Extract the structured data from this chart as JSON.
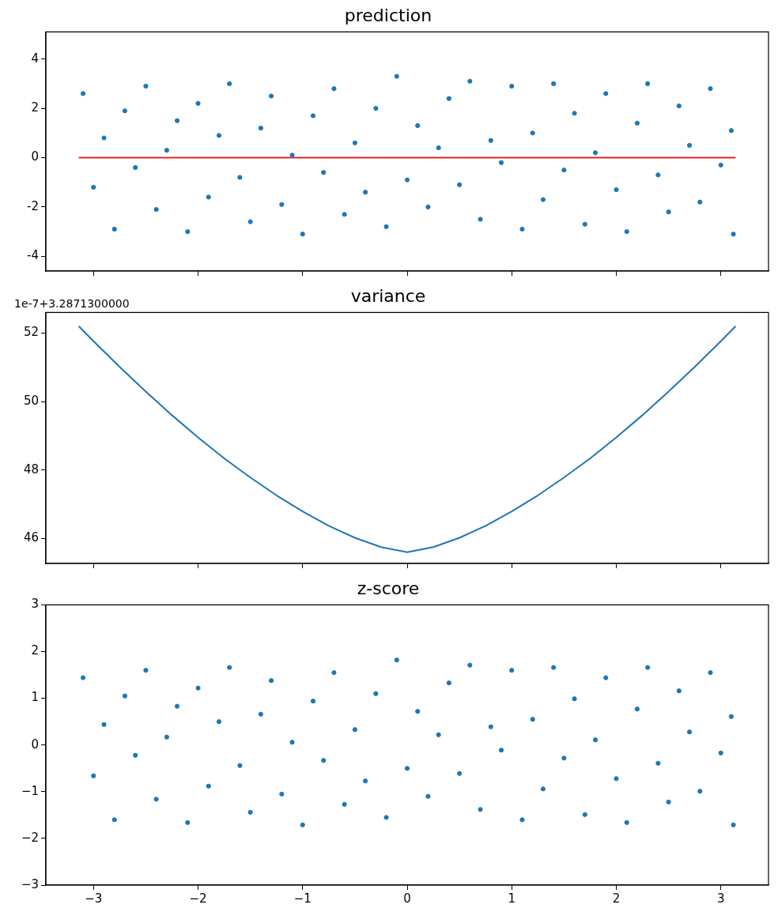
{
  "chart_data": [
    {
      "type": "scatter",
      "title": "prediction",
      "tick_labels": "y",
      "xlim": [
        -3.456,
        3.456
      ],
      "xticks": [
        -3,
        -2,
        -1,
        0,
        1,
        2,
        3
      ],
      "ylim": [
        -4.6,
        5.1
      ],
      "yticks": [
        -4,
        -2,
        0,
        2,
        4
      ],
      "series": [
        {
          "type": "scatter",
          "marker": "circle",
          "color": "#1f77b4",
          "x": [
            -3.1,
            -3.0,
            -2.9,
            -2.8,
            -2.7,
            -2.6,
            -2.5,
            -2.4,
            -2.3,
            -2.2,
            -2.1,
            -2.0,
            -1.9,
            -1.8,
            -1.7,
            -1.6,
            -1.5,
            -1.4,
            -1.3,
            -1.2,
            -1.1,
            -1.0,
            -0.9,
            -0.8,
            -0.7,
            -0.6,
            -0.5,
            -0.4,
            -0.3,
            -0.2,
            -0.1,
            0.0,
            0.1,
            0.2,
            0.3,
            0.4,
            0.5,
            0.6,
            0.7,
            0.8,
            0.9,
            1.0,
            1.1,
            1.2,
            1.3,
            1.4,
            1.5,
            1.6,
            1.7,
            1.8,
            1.9,
            2.0,
            2.1,
            2.2,
            2.3,
            2.4,
            2.5,
            2.6,
            2.7,
            2.8,
            2.9,
            3.0,
            3.1,
            3.12
          ],
          "values": [
            2.6,
            -1.2,
            0.8,
            -2.9,
            1.9,
            -0.4,
            2.9,
            -2.1,
            0.3,
            1.5,
            -3.0,
            2.2,
            -1.6,
            0.9,
            3.0,
            -0.8,
            -2.6,
            1.2,
            2.5,
            -1.9,
            0.1,
            -3.1,
            1.7,
            -0.6,
            2.8,
            -2.3,
            0.6,
            -1.4,
            2.0,
            -2.8,
            3.3,
            -0.9,
            1.3,
            -2.0,
            0.4,
            2.4,
            -1.1,
            3.1,
            -2.5,
            0.7,
            -0.2,
            2.9,
            -2.9,
            1.0,
            -1.7,
            3.0,
            -0.5,
            1.8,
            -2.7,
            0.2,
            2.6,
            -1.3,
            -3.0,
            1.4,
            3.0,
            -0.7,
            -2.2,
            2.1,
            0.5,
            -1.8,
            2.8,
            -0.3,
            1.1,
            -3.1
          ]
        },
        {
          "type": "line",
          "marker": "none",
          "color": "#e3262b",
          "x": [
            -3.1416,
            3.1416
          ],
          "values": [
            0,
            0
          ]
        }
      ]
    },
    {
      "type": "line",
      "title": "variance",
      "annotations": [
        "1e-7+3.2871300000"
      ],
      "marker": "none",
      "tick_labels": "y",
      "xlim": [
        -3.456,
        3.456
      ],
      "xticks": [
        -3,
        -2,
        -1,
        0,
        1,
        2,
        3
      ],
      "ylim": [
        45.27,
        52.6
      ],
      "yticks": [
        46,
        48,
        50,
        52
      ],
      "series": [
        {
          "color": "#1f77b4",
          "x": [
            -3.1416,
            -3.0,
            -2.75,
            -2.5,
            -2.25,
            -2.0,
            -1.75,
            -1.5,
            -1.25,
            -1.0,
            -0.75,
            -0.5,
            -0.25,
            0,
            0.25,
            0.5,
            0.75,
            1.0,
            1.25,
            1.5,
            1.75,
            2.0,
            2.25,
            2.5,
            2.75,
            3.0,
            3.1416
          ],
          "values": [
            52.2,
            51.76,
            51.01,
            50.29,
            49.6,
            48.95,
            48.34,
            47.78,
            47.26,
            46.79,
            46.37,
            46.02,
            45.75,
            45.6,
            45.75,
            46.02,
            46.37,
            46.79,
            47.26,
            47.78,
            48.34,
            48.95,
            49.6,
            50.29,
            51.01,
            51.76,
            52.2
          ]
        }
      ]
    },
    {
      "type": "scatter",
      "title": "z-score",
      "marker": "circle",
      "xlim": [
        -3.456,
        3.456
      ],
      "xticks": [
        {
          "value": -3,
          "label": "−3"
        },
        {
          "value": -2,
          "label": "−2"
        },
        {
          "value": -1,
          "label": "−1"
        },
        0,
        1,
        2,
        3
      ],
      "ylim": [
        -3,
        3
      ],
      "yticks": [
        {
          "value": -3,
          "label": "−3"
        },
        {
          "value": -2,
          "label": "−2"
        },
        {
          "value": -1,
          "label": "−1"
        },
        0,
        1,
        2,
        3
      ],
      "series": [
        {
          "color": "#1f77b4",
          "x": [
            -3.1,
            -3.0,
            -2.9,
            -2.8,
            -2.7,
            -2.6,
            -2.5,
            -2.4,
            -2.3,
            -2.2,
            -2.1,
            -2.0,
            -1.9,
            -1.8,
            -1.7,
            -1.6,
            -1.5,
            -1.4,
            -1.3,
            -1.2,
            -1.1,
            -1.0,
            -0.9,
            -0.8,
            -0.7,
            -0.6,
            -0.5,
            -0.4,
            -0.3,
            -0.2,
            -0.1,
            0.0,
            0.1,
            0.2,
            0.3,
            0.4,
            0.5,
            0.6,
            0.7,
            0.8,
            0.9,
            1.0,
            1.1,
            1.2,
            1.3,
            1.4,
            1.5,
            1.6,
            1.7,
            1.8,
            1.9,
            2.0,
            2.1,
            2.2,
            2.3,
            2.4,
            2.5,
            2.6,
            2.7,
            2.8,
            2.9,
            3.0,
            3.1,
            3.12
          ],
          "values": [
            1.44,
            -0.66,
            0.44,
            -1.6,
            1.05,
            -0.22,
            1.6,
            -1.16,
            0.17,
            0.83,
            -1.66,
            1.22,
            -0.88,
            0.5,
            1.66,
            -0.44,
            -1.44,
            0.66,
            1.38,
            -1.05,
            0.06,
            -1.71,
            0.94,
            -0.33,
            1.55,
            -1.27,
            0.33,
            -0.77,
            1.1,
            -1.55,
            1.82,
            -0.5,
            0.72,
            -1.1,
            0.22,
            1.33,
            -0.61,
            1.71,
            -1.38,
            0.39,
            -0.11,
            1.6,
            -1.6,
            0.55,
            -0.94,
            1.66,
            -0.28,
            0.99,
            -1.49,
            0.11,
            1.44,
            -0.72,
            -1.66,
            0.77,
            1.66,
            -0.39,
            -1.22,
            1.16,
            0.28,
            -0.99,
            1.55,
            -0.17,
            0.61,
            -1.71
          ]
        }
      ]
    }
  ]
}
